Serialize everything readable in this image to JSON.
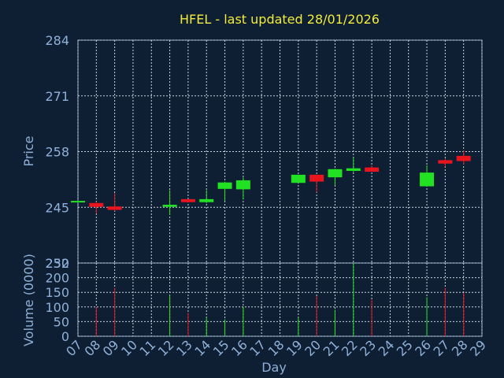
{
  "chart_data": [
    {
      "type": "candlestick",
      "title": "HFEL - last updated 28/01/2026",
      "ylabel": "Price",
      "xlabel": "Day",
      "ylim": [
        232,
        284
      ],
      "yticks": [
        "284",
        "271",
        "258",
        "245",
        "232"
      ],
      "ytick_values": [
        284,
        271,
        258,
        245,
        232
      ],
      "grid": true,
      "x": [
        "07",
        "08",
        "09",
        "10",
        "11",
        "12",
        "13",
        "14",
        "15",
        "16",
        "17",
        "18",
        "19",
        "20",
        "21",
        "22",
        "23",
        "24",
        "25",
        "26",
        "27",
        "28",
        "29"
      ],
      "colors": {
        "up": "#22e022",
        "down": "#e8141e",
        "grid": "#c8d4e0",
        "axis": "#8fb1d9",
        "title": "#f2ec3a"
      },
      "candles": [
        {
          "day": "07",
          "open": 246.2,
          "close": 246.5,
          "high": 246.5,
          "low": 246.2
        },
        {
          "day": "08",
          "open": 246.0,
          "close": 245.1,
          "high": 246.3,
          "low": 243.6
        },
        {
          "day": "09",
          "open": 245.2,
          "close": 244.4,
          "high": 248.3,
          "low": 244.1
        },
        {
          "day": "12",
          "open": 245.1,
          "close": 245.6,
          "high": 249.0,
          "low": 243.2
        },
        {
          "day": "13",
          "open": 246.9,
          "close": 246.2,
          "high": 246.9,
          "low": 246.2
        },
        {
          "day": "14",
          "open": 246.2,
          "close": 246.9,
          "high": 249.0,
          "low": 246.0
        },
        {
          "day": "15",
          "open": 249.3,
          "close": 250.8,
          "high": 251.0,
          "low": 246.5
        },
        {
          "day": "16",
          "open": 249.2,
          "close": 251.3,
          "high": 252.0,
          "low": 246.8
        },
        {
          "day": "19",
          "open": 250.7,
          "close": 252.6,
          "high": 252.6,
          "low": 250.7
        },
        {
          "day": "20",
          "open": 252.6,
          "close": 251.0,
          "high": 252.6,
          "low": 248.5
        },
        {
          "day": "21",
          "open": 252.0,
          "close": 253.9,
          "high": 254.0,
          "low": 250.2
        },
        {
          "day": "22",
          "open": 253.5,
          "close": 254.1,
          "high": 256.7,
          "low": 253.2
        },
        {
          "day": "23",
          "open": 254.3,
          "close": 253.3,
          "high": 254.8,
          "low": 253.3
        },
        {
          "day": "26",
          "open": 249.9,
          "close": 253.1,
          "high": 254.8,
          "low": 249.9
        },
        {
          "day": "27",
          "open": 256.0,
          "close": 255.2,
          "high": 256.4,
          "low": 254.5
        },
        {
          "day": "28",
          "open": 257.0,
          "close": 255.8,
          "high": 258.3,
          "low": 255.0
        }
      ]
    },
    {
      "type": "bar",
      "ylabel": "Volume (0000)",
      "xlabel": "Day",
      "ylim": [
        0,
        250
      ],
      "yticks": [
        "250",
        "200",
        "150",
        "100",
        "50",
        "0"
      ],
      "ytick_values": [
        250,
        200,
        150,
        100,
        50,
        0
      ],
      "bars": [
        {
          "day": "08",
          "value": 100,
          "dir": "down"
        },
        {
          "day": "09",
          "value": 165,
          "dir": "down"
        },
        {
          "day": "12",
          "value": 140,
          "dir": "up"
        },
        {
          "day": "13",
          "value": 80,
          "dir": "down"
        },
        {
          "day": "14",
          "value": 65,
          "dir": "up"
        },
        {
          "day": "15",
          "value": 58,
          "dir": "up"
        },
        {
          "day": "16",
          "value": 100,
          "dir": "up"
        },
        {
          "day": "19",
          "value": 65,
          "dir": "up"
        },
        {
          "day": "20",
          "value": 137,
          "dir": "down"
        },
        {
          "day": "21",
          "value": 90,
          "dir": "up"
        },
        {
          "day": "22",
          "value": 250,
          "dir": "up"
        },
        {
          "day": "23",
          "value": 125,
          "dir": "down"
        },
        {
          "day": "26",
          "value": 133,
          "dir": "up"
        },
        {
          "day": "27",
          "value": 165,
          "dir": "down"
        },
        {
          "day": "28",
          "value": 148,
          "dir": "down"
        }
      ]
    }
  ]
}
